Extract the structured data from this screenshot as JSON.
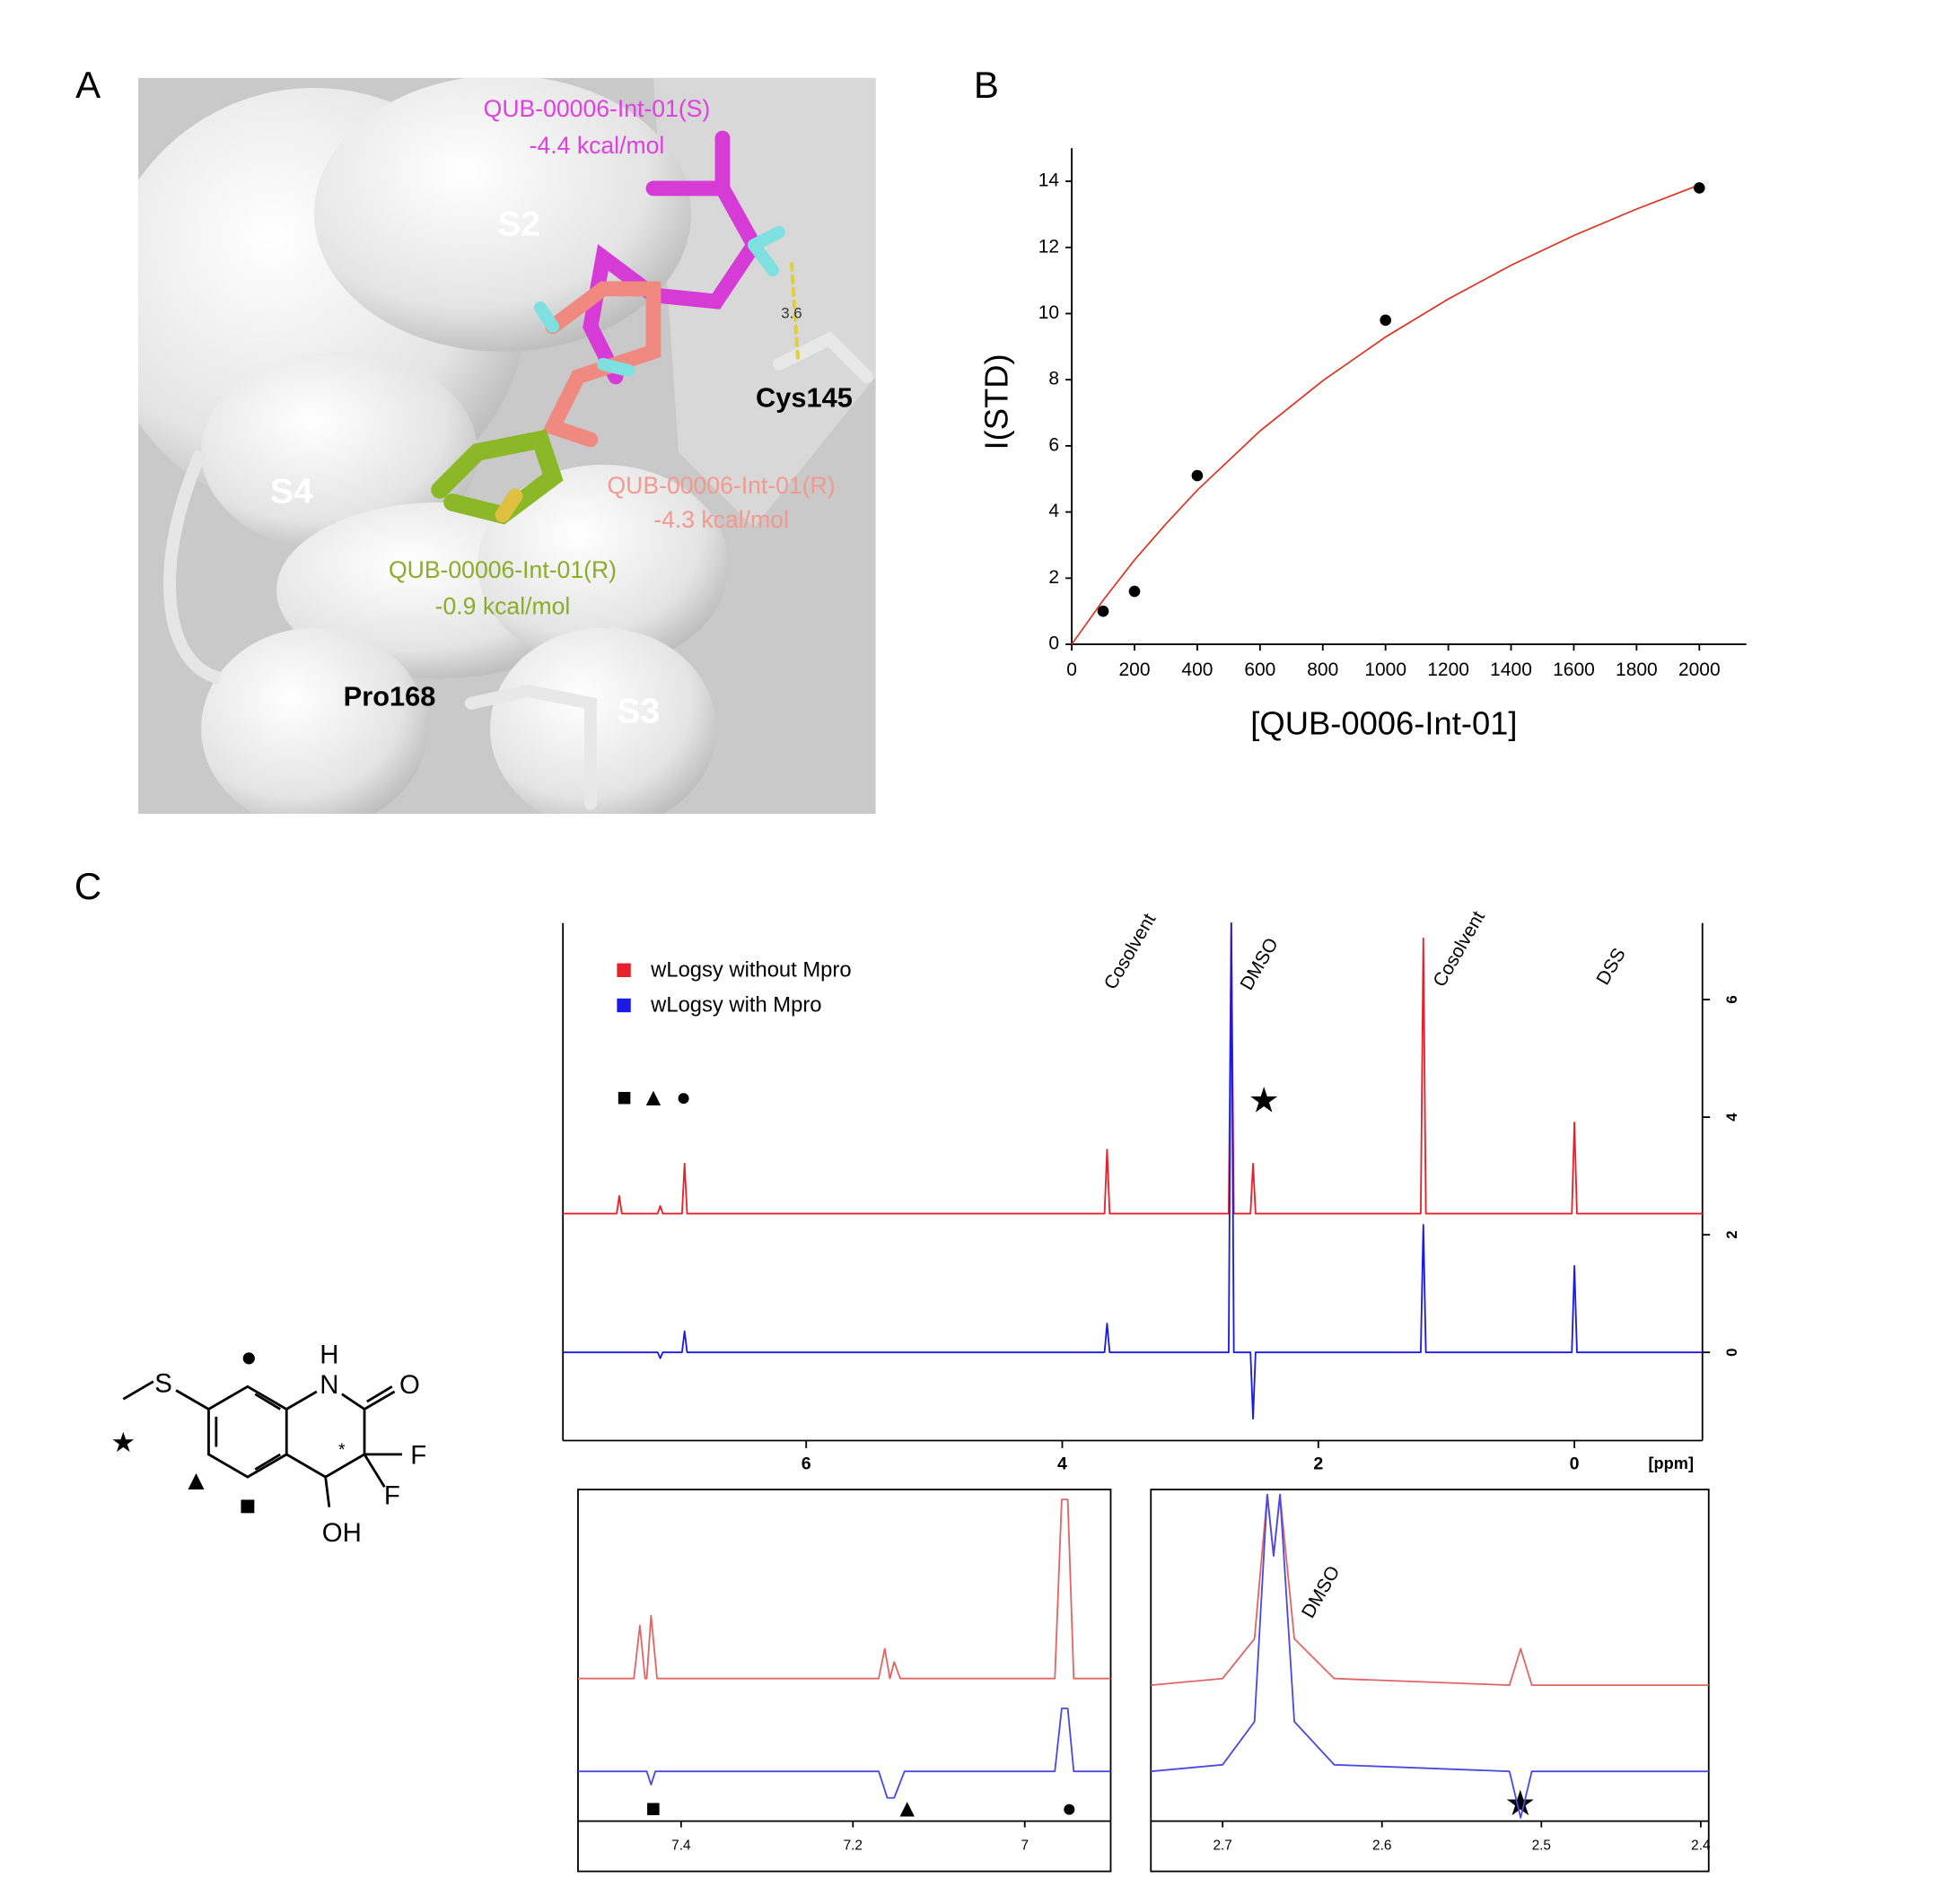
{
  "panel_labels": [
    "A",
    "B",
    "C"
  ],
  "panel_a": {
    "labels": [
      "QUB-00006-Int-01(S)",
      "-4.4 kcal/mol",
      "S2",
      "3.6",
      "Cys145",
      "S4",
      "QUB-00006-Int-01(R)",
      "-4.3 kcal/mol",
      "QUB-00006-Int-01(R)",
      "-0.9 kcal/mol",
      "Pro168",
      "S3"
    ]
  },
  "structure": {
    "atoms": [
      "S",
      "H",
      "N",
      "O",
      "F",
      "F",
      "OH",
      "*"
    ],
    "markers": [
      "●",
      "★",
      "▲",
      "■"
    ]
  },
  "chart_data": [
    {
      "type": "scatter",
      "x_label": "[QUB-0006-Int-01]",
      "y_label": "I(STD)",
      "x": [
        100,
        200,
        400,
        1000,
        2000
      ],
      "values": [
        1.0,
        1.6,
        5.1,
        9.8,
        13.8
      ],
      "color": "#000000",
      "fit": {
        "color": "#e0301e",
        "x": [
          0,
          100,
          200,
          300,
          400,
          600,
          800,
          1000,
          1200,
          1400,
          1600,
          1800,
          2000
        ],
        "values": [
          0,
          1.33,
          2.55,
          3.64,
          4.66,
          6.45,
          7.97,
          9.29,
          10.44,
          11.46,
          12.36,
          13.16,
          13.89
        ]
      },
      "xlim": [
        0,
        2150
      ],
      "xticks": [
        0,
        200,
        400,
        600,
        800,
        1000,
        1200,
        1400,
        1600,
        1800,
        2000
      ],
      "ylim": [
        0,
        15
      ],
      "yticks": [
        0,
        2,
        4,
        6,
        8,
        10,
        12,
        14
      ]
    },
    {
      "type": "line",
      "x_label": "[ppm]",
      "legend": "top-left",
      "xlim": [
        7.9,
        -1.0
      ],
      "xticks": [
        6,
        4,
        2,
        0
      ],
      "ylim": [
        -1.5,
        7.3
      ],
      "yticks": [
        0,
        2,
        4,
        6
      ],
      "annotations": [
        "Cosolvent",
        "DMSO",
        "Cosolvent",
        "DSS"
      ],
      "markers": [
        "■",
        "▲",
        "●",
        "★"
      ],
      "series": [
        {
          "name": "wLogsy without Mpro",
          "color": "#e8202a",
          "x": [
            7.9,
            7.48,
            7.46,
            7.44,
            7.16,
            7.14,
            7.12,
            6.97,
            6.95,
            6.93,
            3.67,
            3.65,
            3.63,
            2.7,
            2.68,
            2.66,
            2.53,
            2.51,
            2.49,
            1.2,
            1.18,
            1.16,
            0.02,
            0,
            -0.02,
            -1.0
          ],
          "values": [
            2.36,
            2.36,
            2.66,
            2.36,
            2.36,
            2.49,
            2.36,
            2.36,
            3.21,
            2.36,
            2.36,
            3.45,
            2.36,
            2.36,
            7.3,
            2.36,
            2.36,
            3.21,
            2.36,
            2.36,
            7.04,
            2.36,
            2.36,
            3.91,
            2.36,
            2.36
          ]
        },
        {
          "name": "wLogsy with Mpro",
          "color": "#1a1ae6",
          "x": [
            7.9,
            7.16,
            7.14,
            7.12,
            6.97,
            6.95,
            6.93,
            3.67,
            3.65,
            3.63,
            2.7,
            2.68,
            2.66,
            2.53,
            2.51,
            2.49,
            1.2,
            1.18,
            1.16,
            0.02,
            0,
            -0.02,
            -1.0
          ],
          "values": [
            0,
            0,
            -0.1,
            0,
            0,
            0.36,
            0,
            0,
            0.49,
            0,
            0,
            7.3,
            0,
            0,
            -1.13,
            0,
            0,
            2.17,
            0,
            0,
            1.47,
            0,
            0
          ]
        }
      ]
    },
    {
      "type": "line",
      "xlim": [
        7.52,
        6.9
      ],
      "xticks": [
        7.4,
        7.2,
        7.0
      ],
      "ylim": [
        0,
        10
      ],
      "markers": [
        "■",
        "▲",
        "●"
      ],
      "series": [
        {
          "color": "#e06666",
          "x": [
            7.52,
            7.455,
            7.448,
            7.442,
            7.44,
            7.435,
            7.428,
            7.17,
            7.163,
            7.157,
            7.152,
            7.145,
            6.965,
            6.957,
            6.95,
            6.943,
            6.9
          ],
          "values": [
            4.3,
            4.3,
            5.9,
            4.3,
            4.3,
            6.2,
            4.3,
            4.3,
            5.2,
            4.3,
            4.8,
            4.3,
            4.3,
            9.7,
            9.7,
            4.3,
            4.3
          ]
        },
        {
          "color": "#4a4ae0",
          "x": [
            7.52,
            7.44,
            7.435,
            7.43,
            7.17,
            7.16,
            7.152,
            7.14,
            6.965,
            6.957,
            6.95,
            6.943,
            6.9
          ],
          "values": [
            1.5,
            1.5,
            1.1,
            1.5,
            1.5,
            0.7,
            0.7,
            1.5,
            1.5,
            3.4,
            3.4,
            1.5,
            1.5
          ]
        }
      ]
    },
    {
      "type": "line",
      "xlim": [
        2.745,
        2.395
      ],
      "xticks": [
        2.7,
        2.6,
        2.5,
        2.4
      ],
      "ylim": [
        0,
        10
      ],
      "annotations": [
        "DMSO"
      ],
      "markers": [
        "★"
      ],
      "series": [
        {
          "color": "#e06666",
          "x": [
            2.745,
            2.7,
            2.68,
            2.672,
            2.668,
            2.664,
            2.655,
            2.63,
            2.52,
            2.513,
            2.506,
            2.395
          ],
          "values": [
            4.1,
            4.3,
            5.5,
            9.85,
            8,
            9.85,
            5.5,
            4.3,
            4.1,
            5.2,
            4.1,
            4.1
          ]
        },
        {
          "color": "#4a4ae0",
          "x": [
            2.745,
            2.7,
            2.68,
            2.672,
            2.668,
            2.664,
            2.655,
            2.63,
            2.52,
            2.513,
            2.506,
            2.395
          ],
          "values": [
            1.5,
            1.7,
            3.0,
            9.85,
            8,
            9.85,
            3.0,
            1.7,
            1.5,
            0.1,
            1.5,
            1.5
          ]
        }
      ]
    }
  ]
}
